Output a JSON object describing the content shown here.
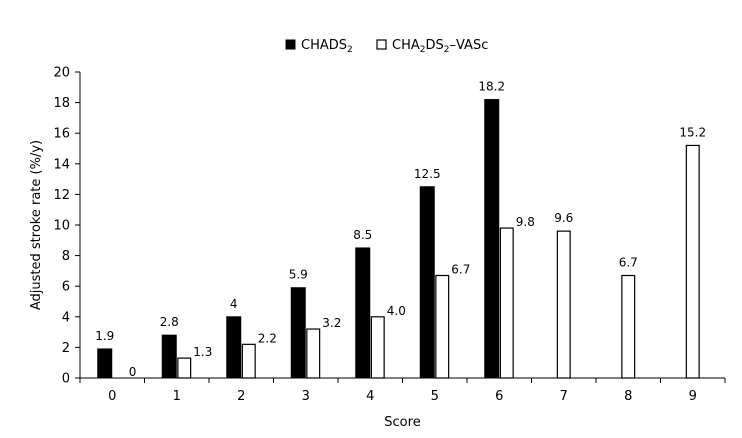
{
  "chart_data": {
    "type": "bar",
    "categories": [
      "0",
      "1",
      "2",
      "3",
      "4",
      "5",
      "6",
      "7",
      "8",
      "9"
    ],
    "series": [
      {
        "name": "CHADS2",
        "legend_main": "CHADS",
        "legend_sub": "2",
        "color": "#000000",
        "values": [
          1.9,
          2.8,
          4,
          5.9,
          8.5,
          12.5,
          18.2,
          null,
          null,
          null
        ],
        "labels": [
          "1.9",
          "2.8",
          "4",
          "5.9",
          "8.5",
          "12.5",
          "18.2",
          null,
          null,
          null
        ]
      },
      {
        "name": "CHA2DS2-VASc",
        "legend_parts": [
          "CHA",
          "2",
          "DS",
          "2",
          "–VASc"
        ],
        "color": "#ffffff",
        "values": [
          0,
          1.3,
          2.2,
          3.2,
          4.0,
          6.7,
          9.8,
          9.6,
          6.7,
          15.2
        ],
        "labels": [
          "0",
          "1.3",
          "2.2",
          "3.2",
          "4.0",
          "6.7",
          "9.8",
          "9.6",
          "6.7",
          "15.2"
        ]
      }
    ],
    "xlabel": "Score",
    "ylabel": "Adjusted stroke rate (%/y)",
    "ylim": [
      0,
      20
    ],
    "yticks": [
      "0",
      "2",
      "4",
      "6",
      "8",
      "10",
      "12",
      "14",
      "16",
      "18",
      "20"
    ],
    "grid": false,
    "legend_position": "top-center"
  }
}
